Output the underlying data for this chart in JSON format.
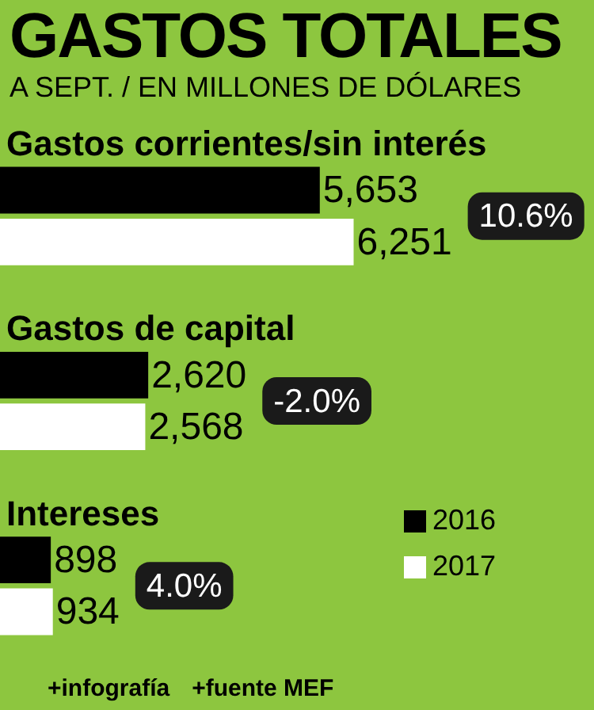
{
  "chart_data": {
    "type": "bar",
    "orientation": "horizontal",
    "title": "GASTOS TOTALES",
    "subtitle": "A SEPT. / EN MILLONES DE DÓLARES",
    "categories": [
      "Gastos corrientes/sin interés",
      "Gastos de capital",
      "Intereses"
    ],
    "series": [
      {
        "name": "2016",
        "color": "#000000",
        "values": [
          5653,
          2620,
          898
        ],
        "value_labels": [
          "5,653",
          "2,620",
          "898"
        ]
      },
      {
        "name": "2017",
        "color": "#ffffff",
        "values": [
          6251,
          2568,
          934
        ],
        "value_labels": [
          "6,251",
          "2,568",
          "934"
        ]
      }
    ],
    "xlim": [
      0,
      10500
    ],
    "legend": "bottom right",
    "annotations": [
      "10.6%",
      "-2.0%",
      "4.0%",
      "+infografía",
      "+fuente MEF"
    ]
  }
}
